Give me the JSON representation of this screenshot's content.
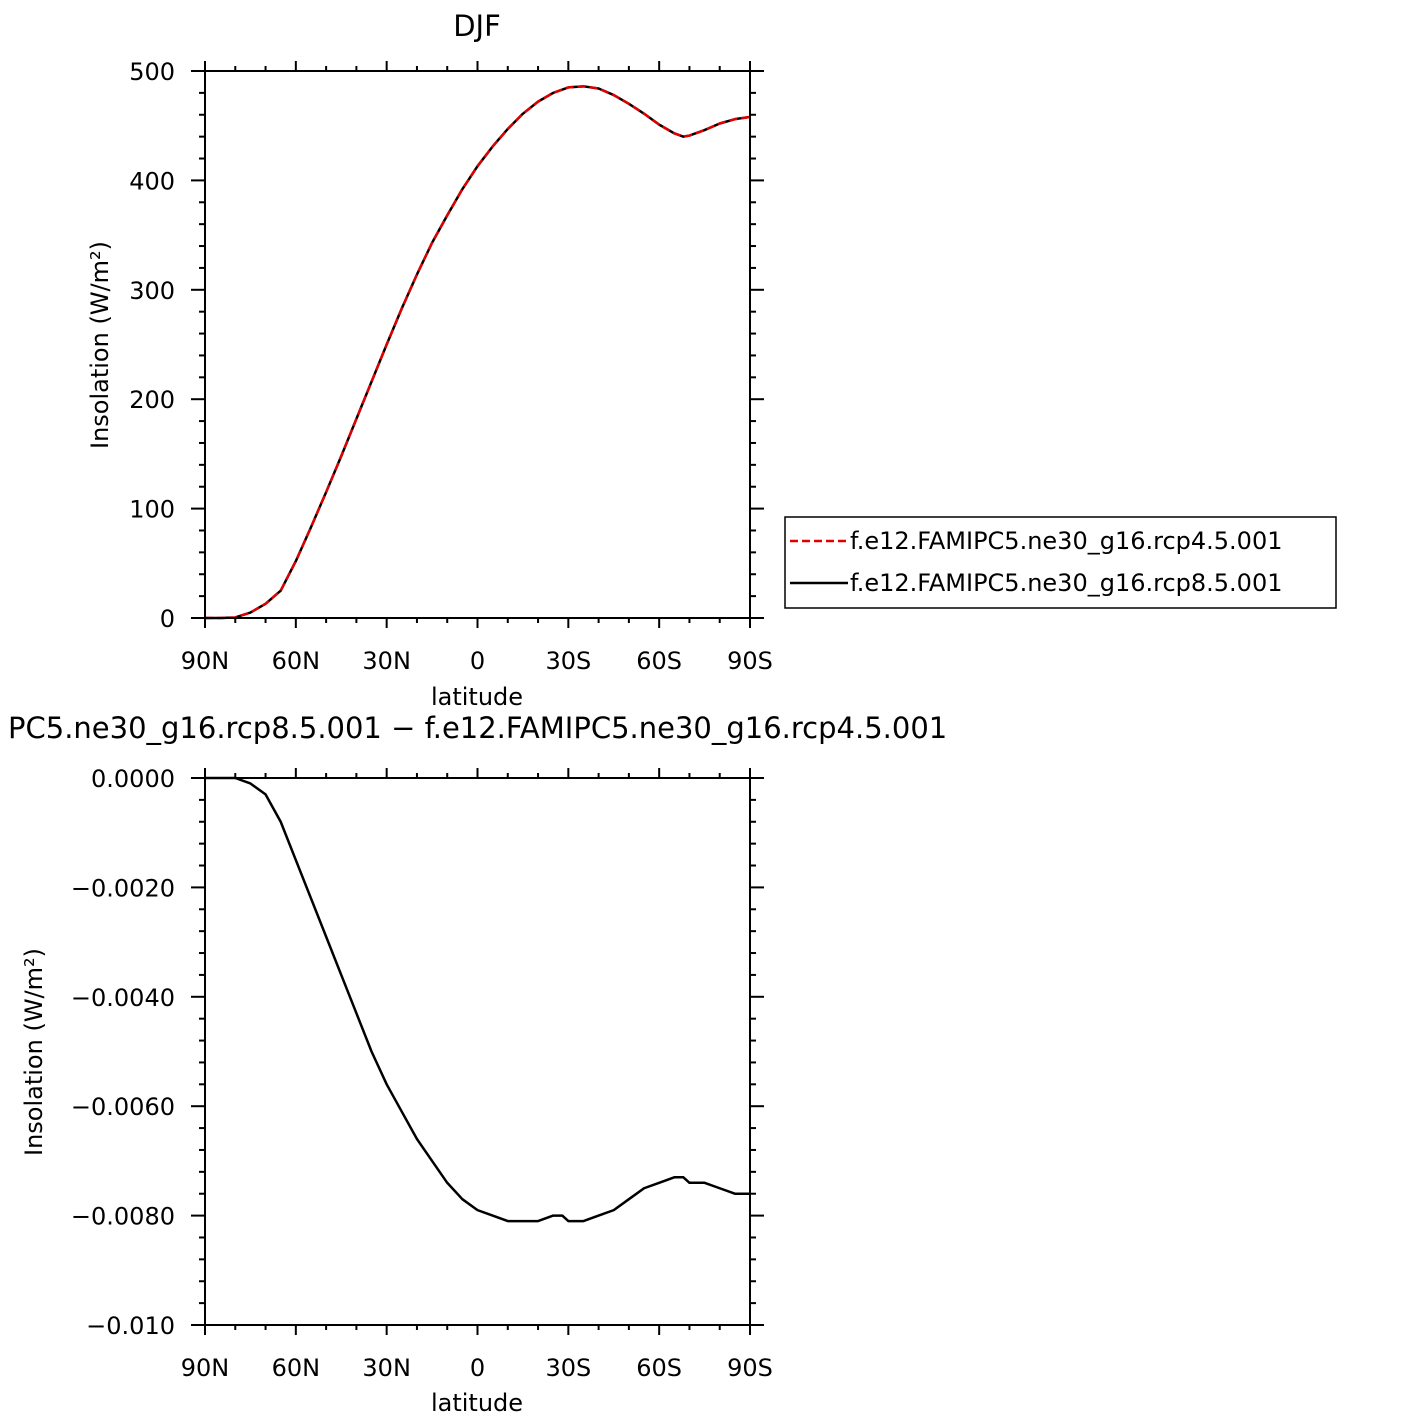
{
  "chart_data": [
    {
      "type": "line",
      "title": "DJF",
      "xlabel": "latitude",
      "ylabel": "Insolation  (W/m²)",
      "xlim": [
        -90,
        90
      ],
      "ylim": [
        0,
        500
      ],
      "x_direction": "90N to 90S",
      "x_ticks": [
        -90,
        -60,
        -30,
        0,
        30,
        60,
        90
      ],
      "x_tick_labels": [
        "90N",
        "60N",
        "30N",
        "0",
        "30S",
        "60S",
        "90S"
      ],
      "y_ticks": [
        0,
        100,
        200,
        300,
        400,
        500
      ],
      "y_tick_labels": [
        "0",
        "100",
        "200",
        "300",
        "400",
        "500"
      ],
      "grid": false,
      "legend_position": "right",
      "series": [
        {
          "name": "f.e12.FAMIPC5.ne30_g16.rcp4.5.001",
          "color": "#e00000",
          "dash": "dashed",
          "x": [
            -90,
            -85,
            -80,
            -75,
            -70,
            -65,
            -60,
            -55,
            -50,
            -45,
            -40,
            -35,
            -30,
            -25,
            -20,
            -15,
            -10,
            -5,
            0,
            5,
            10,
            15,
            20,
            25,
            30,
            35,
            40,
            45,
            50,
            55,
            60,
            65,
            68,
            70,
            75,
            80,
            85,
            90
          ],
          "values": [
            0,
            0,
            0.5,
            5,
            13,
            25,
            52,
            83,
            115,
            148,
            182,
            216,
            250,
            283,
            314,
            343,
            368,
            392,
            413,
            431,
            447,
            461,
            472,
            480,
            485,
            486,
            484,
            478,
            470,
            461,
            451,
            443,
            440,
            441,
            446,
            452,
            456,
            458
          ]
        },
        {
          "name": "f.e12.FAMIPC5.ne30_g16.rcp8.5.001",
          "color": "#000000",
          "dash": "solid",
          "x": [
            -90,
            -85,
            -80,
            -75,
            -70,
            -65,
            -60,
            -55,
            -50,
            -45,
            -40,
            -35,
            -30,
            -25,
            -20,
            -15,
            -10,
            -5,
            0,
            5,
            10,
            15,
            20,
            25,
            30,
            35,
            40,
            45,
            50,
            55,
            60,
            65,
            68,
            70,
            75,
            80,
            85,
            90
          ],
          "values": [
            0,
            0,
            0.5,
            5,
            13,
            25,
            52,
            83,
            115,
            148,
            182,
            216,
            250,
            283,
            314,
            343,
            368,
            392,
            413,
            431,
            447,
            461,
            472,
            480,
            485,
            486,
            484,
            478,
            470,
            461,
            451,
            443,
            440,
            441,
            446,
            452,
            456,
            458
          ]
        }
      ]
    },
    {
      "type": "line",
      "title": "PC5.ne30_g16.rcp8.5.001 − f.e12.FAMIPC5.ne30_g16.rcp4.5.001",
      "xlabel": "latitude",
      "ylabel": "Insolation  (W/m²)",
      "xlim": [
        -90,
        90
      ],
      "ylim": [
        -0.01,
        0
      ],
      "x_direction": "90N to 90S",
      "x_ticks": [
        -90,
        -60,
        -30,
        0,
        30,
        60,
        90
      ],
      "x_tick_labels": [
        "90N",
        "60N",
        "30N",
        "0",
        "30S",
        "60S",
        "90S"
      ],
      "y_ticks": [
        0,
        -0.002,
        -0.004,
        -0.006,
        -0.008,
        -0.01
      ],
      "y_tick_labels": [
        "0.0000",
        "−0.0020",
        "−0.0040",
        "−0.0060",
        "−0.0080",
        "−0.010"
      ],
      "grid": false,
      "series": [
        {
          "color": "#000000",
          "dash": "solid",
          "x": [
            -90,
            -85,
            -80,
            -75,
            -70,
            -65,
            -60,
            -55,
            -50,
            -45,
            -40,
            -35,
            -30,
            -25,
            -20,
            -15,
            -10,
            -5,
            0,
            5,
            10,
            15,
            20,
            25,
            28,
            30,
            35,
            40,
            45,
            50,
            55,
            60,
            65,
            68,
            70,
            75,
            80,
            85,
            90
          ],
          "values": [
            0,
            0,
            0,
            -0.0001,
            -0.0003,
            -0.0008,
            -0.0015,
            -0.0022,
            -0.0029,
            -0.0036,
            -0.0043,
            -0.005,
            -0.0056,
            -0.0061,
            -0.0066,
            -0.007,
            -0.0074,
            -0.0077,
            -0.0079,
            -0.008,
            -0.0081,
            -0.0081,
            -0.0081,
            -0.008,
            -0.008,
            -0.0081,
            -0.0081,
            -0.008,
            -0.0079,
            -0.0077,
            -0.0075,
            -0.0074,
            -0.0073,
            -0.0073,
            -0.0074,
            -0.0074,
            -0.0075,
            -0.0076,
            -0.0076
          ]
        }
      ]
    }
  ]
}
